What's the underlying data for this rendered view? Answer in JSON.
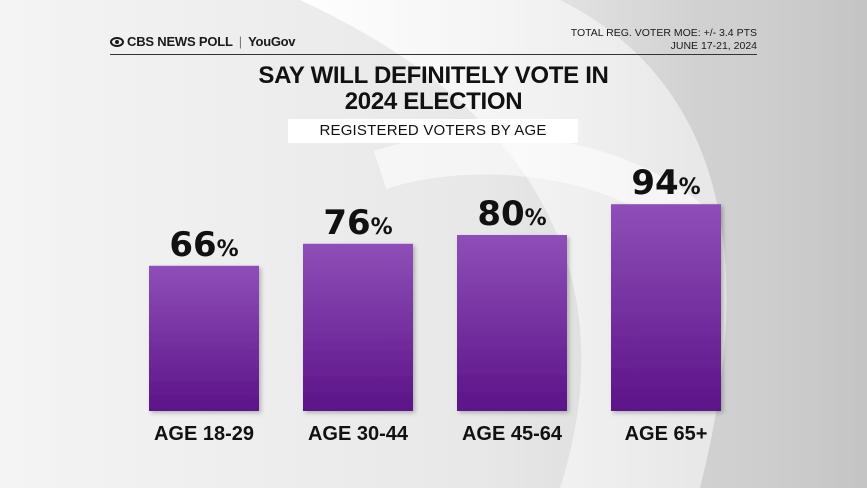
{
  "header": {
    "brand_cbs": "CBS NEWS POLL",
    "brand_separator": "|",
    "brand_partner": "YouGov",
    "moe": "TOTAL REG. VOTER MOE: +/- 3.4 PTS",
    "dates": "JUNE 17-21, 2024"
  },
  "colors": {
    "bar_top": "#8e4fb8",
    "bar_bottom": "#5c1388"
  },
  "chart_data": {
    "type": "bar",
    "title_line1": "SAY WILL DEFINITELY VOTE IN",
    "title_line2": "2024 ELECTION",
    "subtitle": "REGISTERED VOTERS BY AGE",
    "categories": [
      "AGE 18-29",
      "AGE 30-44",
      "AGE 45-64",
      "AGE 65+"
    ],
    "values": [
      66,
      76,
      80,
      94
    ],
    "value_suffix": "%",
    "ylim": [
      0,
      100
    ],
    "xlabel": "",
    "ylabel": "",
    "grid": false
  }
}
